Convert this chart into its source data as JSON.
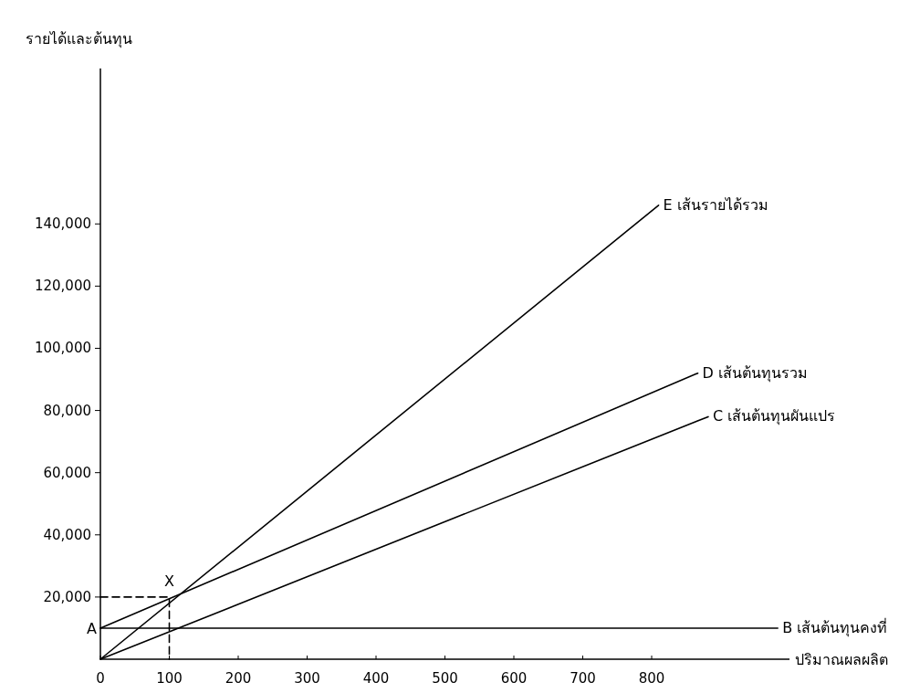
{
  "chart_data": {
    "type": "line",
    "xlabel": "ปริมาณผลผลิต",
    "ylabel": "รายได้และต้นทุน",
    "xlim": [
      0,
      1000
    ],
    "ylim": [
      0,
      190000
    ],
    "xticks": [
      0,
      100,
      200,
      300,
      400,
      500,
      600,
      700,
      800
    ],
    "yticks": [
      {
        "value": 20000,
        "label": "20,000"
      },
      {
        "value": 40000,
        "label": "40,000"
      },
      {
        "value": 60000,
        "label": "60,000"
      },
      {
        "value": 80000,
        "label": "80,000"
      },
      {
        "value": 100000,
        "label": "100,000"
      },
      {
        "value": 120000,
        "label": "120,000"
      },
      {
        "value": 140000,
        "label": "140,000"
      }
    ],
    "grid": false,
    "line_style": "solid",
    "series": [
      {
        "name": "E  เส้นรายได้รวม",
        "color": "#000000",
        "x": [
          0,
          810
        ],
        "values": [
          0,
          146000
        ]
      },
      {
        "name": "D  เส้นต้นทุนรวม",
        "color": "#000000",
        "x": [
          0,
          867
        ],
        "values": [
          10000,
          92000
        ]
      },
      {
        "name": "C  เส้นต้นทุนผันแปร",
        "color": "#000000",
        "x": [
          0,
          882
        ],
        "values": [
          0,
          78000
        ]
      },
      {
        "name": "B  เส้นต้นทุนคงที่",
        "color": "#000000",
        "x": [
          0,
          983
        ],
        "values": [
          10000,
          10000
        ]
      },
      {
        "color": "#000000",
        "line_style": "dashed",
        "x": [
          0,
          100,
          100
        ],
        "values": [
          20000,
          20000,
          0
        ]
      }
    ],
    "annotations": [
      {
        "text": "A",
        "x": 0,
        "y": 10000
      },
      {
        "text": "X",
        "x": 100,
        "y": 20000
      }
    ]
  }
}
